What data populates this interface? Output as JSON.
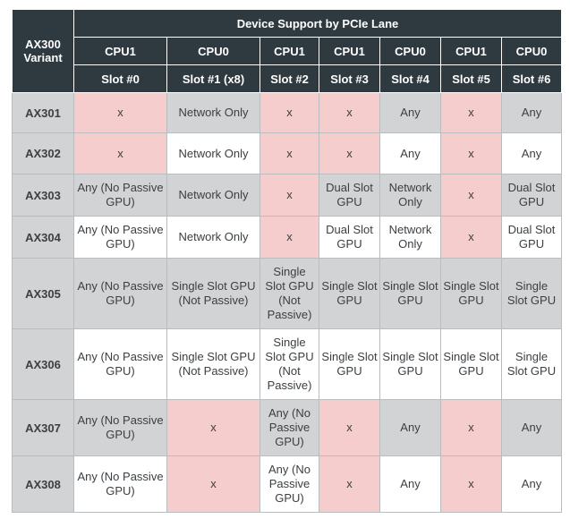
{
  "table": {
    "corner_label": "AX300 Variant",
    "title": "Device Support by PCIe Lane",
    "cpus": [
      "CPU1",
      "CPU0",
      "CPU1",
      "CPU1",
      "CPU0",
      "CPU1",
      "CPU0"
    ],
    "slots": [
      "Slot #0",
      "Slot #1 (x8)",
      "Slot #2",
      "Slot #3",
      "Slot #4",
      "Slot #5",
      "Slot #6"
    ],
    "colors": {
      "header": "#2f3a40",
      "gray": "#d1d3d4",
      "pink": "#f4cdcc",
      "white": "#ffffff"
    },
    "rows": [
      {
        "variant": "AX301",
        "height": 45,
        "cells": [
          {
            "text": "x",
            "bg": "pink"
          },
          {
            "text": "Network Only",
            "bg": "gray"
          },
          {
            "text": "x",
            "bg": "pink"
          },
          {
            "text": "x",
            "bg": "pink"
          },
          {
            "text": "Any",
            "bg": "gray"
          },
          {
            "text": "x",
            "bg": "pink"
          },
          {
            "text": "Any",
            "bg": "gray"
          }
        ]
      },
      {
        "variant": "AX302",
        "height": 46,
        "cells": [
          {
            "text": "x",
            "bg": "pink"
          },
          {
            "text": "Network Only",
            "bg": "white"
          },
          {
            "text": "x",
            "bg": "pink"
          },
          {
            "text": "x",
            "bg": "pink"
          },
          {
            "text": "Any",
            "bg": "white"
          },
          {
            "text": "x",
            "bg": "pink"
          },
          {
            "text": "Any",
            "bg": "white"
          }
        ]
      },
      {
        "variant": "AX303",
        "height": 47,
        "cells": [
          {
            "text": "Any (No Passive GPU)",
            "bg": "gray"
          },
          {
            "text": "Network Only",
            "bg": "gray"
          },
          {
            "text": "x",
            "bg": "pink"
          },
          {
            "text": "Dual Slot GPU",
            "bg": "gray"
          },
          {
            "text": "Network Only",
            "bg": "gray"
          },
          {
            "text": "x",
            "bg": "pink"
          },
          {
            "text": "Dual Slot GPU",
            "bg": "gray"
          }
        ]
      },
      {
        "variant": "AX304",
        "height": 47,
        "cells": [
          {
            "text": "Any (No Passive GPU)",
            "bg": "white"
          },
          {
            "text": "Network Only",
            "bg": "white"
          },
          {
            "text": "x",
            "bg": "pink"
          },
          {
            "text": "Dual Slot GPU",
            "bg": "white"
          },
          {
            "text": "Network Only",
            "bg": "white"
          },
          {
            "text": "x",
            "bg": "pink"
          },
          {
            "text": "Dual Slot GPU",
            "bg": "white"
          }
        ]
      },
      {
        "variant": "AX305",
        "height": 79,
        "cells": [
          {
            "text": "Any (No Passive GPU)",
            "bg": "gray"
          },
          {
            "text": "Single Slot GPU (Not Passive)",
            "bg": "gray"
          },
          {
            "text": "Single Slot GPU (Not Passive)",
            "bg": "gray"
          },
          {
            "text": "Single Slot GPU",
            "bg": "gray"
          },
          {
            "text": "Single Slot GPU",
            "bg": "gray"
          },
          {
            "text": "Single Slot GPU",
            "bg": "gray"
          },
          {
            "text": "Single Slot GPU",
            "bg": "gray"
          }
        ]
      },
      {
        "variant": "AX306",
        "height": 79,
        "cells": [
          {
            "text": "Any (No Passive GPU)",
            "bg": "white"
          },
          {
            "text": "Single Slot GPU (Not Passive)",
            "bg": "white"
          },
          {
            "text": "Single Slot GPU (Not Passive)",
            "bg": "white"
          },
          {
            "text": "Single Slot GPU",
            "bg": "white"
          },
          {
            "text": "Single Slot GPU",
            "bg": "white"
          },
          {
            "text": "Single Slot GPU",
            "bg": "white"
          },
          {
            "text": "Single Slot GPU",
            "bg": "white"
          }
        ]
      },
      {
        "variant": "AX307",
        "height": 63,
        "cells": [
          {
            "text": "Any (No Passive GPU)",
            "bg": "gray"
          },
          {
            "text": "x",
            "bg": "pink"
          },
          {
            "text": "Any (No Passive GPU)",
            "bg": "gray"
          },
          {
            "text": "x",
            "bg": "pink"
          },
          {
            "text": "Any",
            "bg": "gray"
          },
          {
            "text": "x",
            "bg": "pink"
          },
          {
            "text": "Any",
            "bg": "gray"
          }
        ]
      },
      {
        "variant": "AX308",
        "height": 63,
        "cells": [
          {
            "text": "Any (No Passive GPU)",
            "bg": "white"
          },
          {
            "text": "x",
            "bg": "pink"
          },
          {
            "text": "Any (No Passive GPU)",
            "bg": "white"
          },
          {
            "text": "x",
            "bg": "pink"
          },
          {
            "text": "Any",
            "bg": "white"
          },
          {
            "text": "x",
            "bg": "pink"
          },
          {
            "text": "Any",
            "bg": "white"
          }
        ]
      }
    ]
  }
}
